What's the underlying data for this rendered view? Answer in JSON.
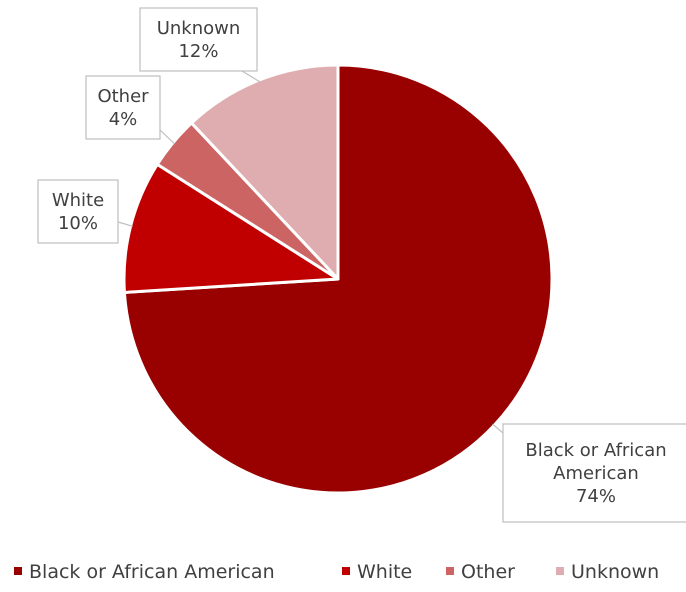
{
  "chart_data": {
    "type": "pie",
    "title": "",
    "categories": [
      "Black or African American",
      "White",
      "Other",
      "Unknown"
    ],
    "values": [
      74,
      10,
      4,
      12
    ],
    "value_labels": [
      "74%",
      "10%",
      "4%",
      "12%"
    ],
    "colors": [
      "#990000",
      "#C00000",
      "#CD6464",
      "#DFADAF"
    ],
    "legend_position": "bottom",
    "data_labels": "callouts with category name and percentage"
  }
}
